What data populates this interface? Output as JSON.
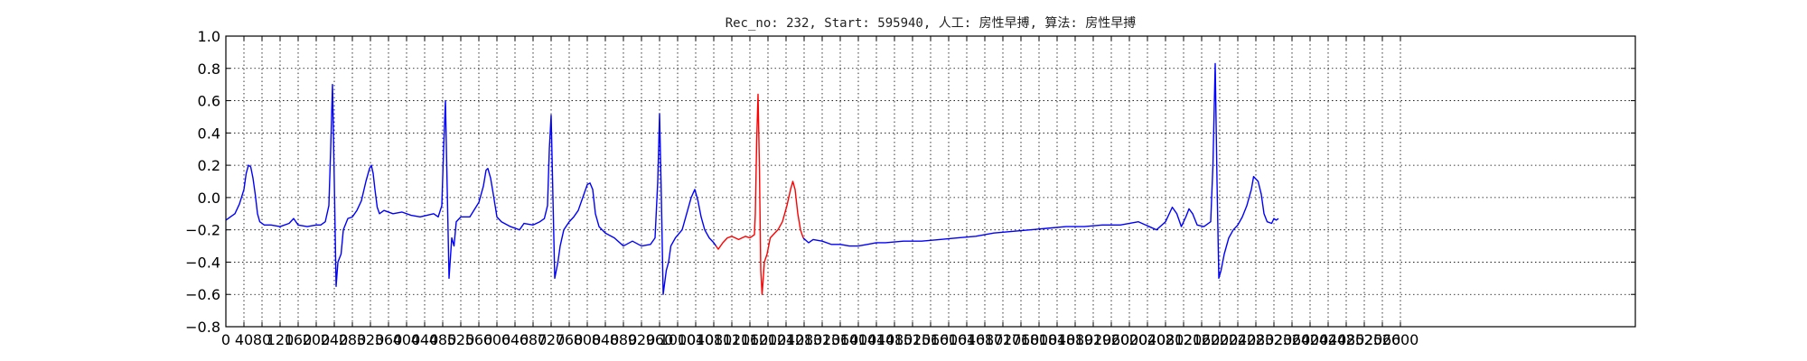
{
  "chart_data": {
    "type": "line",
    "title": "Rec_no: 232, Start: 595940, 人工: 房性早搏, 算法: 房性早搏",
    "xlabel": "",
    "ylabel": "",
    "xlim": [
      0,
      3120
    ],
    "ylim": [
      -0.8,
      1.0
    ],
    "grid": true,
    "x_ticks": [
      "0",
      "40",
      "80",
      "120",
      "160",
      "200",
      "240",
      "280",
      "320",
      "360",
      "400",
      "440",
      "480",
      "520",
      "560",
      "600",
      "640",
      "680",
      "720",
      "760",
      "800",
      "840",
      "880",
      "920",
      "960",
      "1000",
      "1040",
      "1080",
      "1120",
      "1160",
      "1200",
      "1240",
      "1280",
      "1320",
      "1360",
      "1400",
      "1440",
      "1480",
      "1520",
      "1560",
      "1600",
      "1640",
      "1680",
      "1720",
      "1760",
      "1800",
      "1840",
      "1880",
      "1920",
      "1960",
      "2000",
      "2040",
      "2080",
      "2120",
      "2160",
      "2200",
      "2240",
      "2280",
      "2320",
      "2360",
      "2400",
      "2440",
      "2480",
      "2520",
      "2560",
      "2600"
    ],
    "y_ticks": [
      "1.0",
      "0.8",
      "0.6",
      "0.4",
      "0.2",
      "0.0",
      "−0.2",
      "−0.4",
      "−0.6",
      "−0.8"
    ],
    "series": [
      {
        "color": "#0000ff",
        "points": [
          [
            0,
            -0.14
          ],
          [
            10,
            -0.12
          ],
          [
            20,
            -0.1
          ],
          [
            30,
            -0.04
          ],
          [
            40,
            0.05
          ],
          [
            45,
            0.15
          ],
          [
            50,
            0.2
          ],
          [
            55,
            0.19
          ],
          [
            60,
            0.12
          ],
          [
            65,
            0.02
          ],
          [
            70,
            -0.1
          ],
          [
            75,
            -0.15
          ],
          [
            85,
            -0.17
          ],
          [
            100,
            -0.17
          ],
          [
            120,
            -0.18
          ],
          [
            140,
            -0.16
          ],
          [
            150,
            -0.13
          ],
          [
            160,
            -0.17
          ],
          [
            180,
            -0.18
          ],
          [
            200,
            -0.17
          ],
          [
            210,
            -0.17
          ],
          [
            220,
            -0.15
          ],
          [
            228,
            -0.05
          ],
          [
            232,
            0.3
          ],
          [
            236,
            0.7
          ],
          [
            240,
            0.1
          ],
          [
            244,
            -0.55
          ],
          [
            248,
            -0.4
          ],
          [
            255,
            -0.35
          ],
          [
            260,
            -0.2
          ],
          [
            270,
            -0.13
          ],
          [
            280,
            -0.12
          ],
          [
            290,
            -0.08
          ],
          [
            300,
            -0.02
          ],
          [
            310,
            0.1
          ],
          [
            318,
            0.18
          ],
          [
            322,
            0.2
          ],
          [
            326,
            0.15
          ],
          [
            330,
            0.05
          ],
          [
            335,
            -0.06
          ],
          [
            340,
            -0.1
          ],
          [
            350,
            -0.08
          ],
          [
            370,
            -0.1
          ],
          [
            390,
            -0.09
          ],
          [
            410,
            -0.11
          ],
          [
            430,
            -0.12
          ],
          [
            460,
            -0.1
          ],
          [
            470,
            -0.12
          ],
          [
            478,
            -0.05
          ],
          [
            482,
            0.3
          ],
          [
            486,
            0.6
          ],
          [
            490,
            0.05
          ],
          [
            494,
            -0.5
          ],
          [
            500,
            -0.25
          ],
          [
            505,
            -0.3
          ],
          [
            510,
            -0.15
          ],
          [
            520,
            -0.12
          ],
          [
            540,
            -0.12
          ],
          [
            560,
            -0.03
          ],
          [
            570,
            0.07
          ],
          [
            576,
            0.17
          ],
          [
            580,
            0.18
          ],
          [
            586,
            0.12
          ],
          [
            592,
            0.02
          ],
          [
            600,
            -0.12
          ],
          [
            610,
            -0.15
          ],
          [
            630,
            -0.18
          ],
          [
            650,
            -0.2
          ],
          [
            660,
            -0.16
          ],
          [
            680,
            -0.17
          ],
          [
            695,
            -0.15
          ],
          [
            705,
            -0.13
          ],
          [
            712,
            -0.05
          ],
          [
            716,
            0.3
          ],
          [
            720,
            0.51
          ],
          [
            724,
            0.0
          ],
          [
            728,
            -0.5
          ],
          [
            735,
            -0.4
          ],
          [
            740,
            -0.3
          ],
          [
            748,
            -0.2
          ],
          [
            760,
            -0.15
          ],
          [
            770,
            -0.12
          ],
          [
            780,
            -0.08
          ],
          [
            790,
            0.0
          ],
          [
            800,
            0.08
          ],
          [
            806,
            0.09
          ],
          [
            812,
            0.05
          ],
          [
            818,
            -0.1
          ],
          [
            826,
            -0.18
          ],
          [
            840,
            -0.22
          ],
          [
            860,
            -0.25
          ],
          [
            880,
            -0.3
          ],
          [
            900,
            -0.27
          ],
          [
            920,
            -0.3
          ],
          [
            940,
            -0.29
          ],
          [
            950,
            -0.25
          ],
          [
            956,
            0.1
          ],
          [
            960,
            0.52
          ],
          [
            964,
            0.0
          ],
          [
            968,
            -0.6
          ],
          [
            975,
            -0.45
          ],
          [
            980,
            -0.4
          ],
          [
            985,
            -0.3
          ],
          [
            995,
            -0.25
          ],
          [
            1010,
            -0.2
          ],
          [
            1020,
            -0.1
          ],
          [
            1030,
            0.0
          ],
          [
            1038,
            0.05
          ],
          [
            1045,
            -0.02
          ],
          [
            1052,
            -0.12
          ],
          [
            1060,
            -0.2
          ],
          [
            1070,
            -0.25
          ],
          [
            1080,
            -0.28
          ],
          [
            1085,
            -0.3
          ]
        ]
      },
      {
        "color": "#ff0000",
        "points": [
          [
            1085,
            -0.3
          ],
          [
            1090,
            -0.32
          ],
          [
            1100,
            -0.28
          ],
          [
            1110,
            -0.25
          ],
          [
            1120,
            -0.24
          ],
          [
            1135,
            -0.26
          ],
          [
            1150,
            -0.24
          ],
          [
            1160,
            -0.25
          ],
          [
            1170,
            -0.23
          ],
          [
            1172,
            -0.1
          ],
          [
            1175,
            0.35
          ],
          [
            1178,
            0.64
          ],
          [
            1181,
            0.2
          ],
          [
            1184,
            -0.45
          ],
          [
            1187,
            -0.6
          ],
          [
            1192,
            -0.4
          ],
          [
            1198,
            -0.35
          ],
          [
            1205,
            -0.25
          ],
          [
            1215,
            -0.22
          ],
          [
            1222,
            -0.2
          ],
          [
            1232,
            -0.15
          ],
          [
            1242,
            -0.05
          ],
          [
            1250,
            0.05
          ],
          [
            1255,
            0.1
          ],
          [
            1260,
            0.05
          ],
          [
            1266,
            -0.1
          ],
          [
            1272,
            -0.2
          ],
          [
            1278,
            -0.25
          ]
        ]
      },
      {
        "color": "#0000ff",
        "points": [
          [
            1278,
            -0.25
          ],
          [
            1290,
            -0.28
          ],
          [
            1300,
            -0.26
          ],
          [
            1320,
            -0.27
          ],
          [
            1340,
            -0.29
          ],
          [
            1360,
            -0.29
          ],
          [
            1380,
            -0.3
          ],
          [
            1400,
            -0.3
          ],
          [
            1420,
            -0.29
          ],
          [
            1440,
            -0.28
          ],
          [
            1460,
            -0.28
          ],
          [
            1500,
            -0.27
          ],
          [
            1540,
            -0.27
          ],
          [
            1580,
            -0.26
          ],
          [
            1620,
            -0.25
          ],
          [
            1660,
            -0.24
          ],
          [
            1700,
            -0.22
          ],
          [
            1740,
            -0.21
          ],
          [
            1780,
            -0.2
          ],
          [
            1820,
            -0.19
          ],
          [
            1860,
            -0.18
          ],
          [
            1900,
            -0.18
          ],
          [
            1940,
            -0.17
          ],
          [
            1980,
            -0.17
          ],
          [
            2020,
            -0.15
          ],
          [
            2060,
            -0.2
          ],
          [
            2080,
            -0.15
          ],
          [
            2095,
            -0.06
          ],
          [
            2105,
            -0.1
          ],
          [
            2115,
            -0.18
          ],
          [
            2125,
            -0.12
          ],
          [
            2132,
            -0.07
          ],
          [
            2140,
            -0.1
          ],
          [
            2150,
            -0.17
          ],
          [
            2165,
            -0.18
          ],
          [
            2180,
            -0.15
          ],
          [
            2185,
            0.2
          ],
          [
            2190,
            0.83
          ],
          [
            2194,
            0.1
          ],
          [
            2198,
            -0.5
          ],
          [
            2203,
            -0.45
          ],
          [
            2210,
            -0.35
          ],
          [
            2220,
            -0.25
          ],
          [
            2230,
            -0.2
          ],
          [
            2240,
            -0.17
          ],
          [
            2250,
            -0.12
          ],
          [
            2260,
            -0.05
          ],
          [
            2270,
            0.05
          ],
          [
            2275,
            0.13
          ],
          [
            2285,
            0.1
          ],
          [
            2292,
            0.02
          ],
          [
            2298,
            -0.1
          ],
          [
            2305,
            -0.15
          ],
          [
            2315,
            -0.16
          ],
          [
            2320,
            -0.13
          ],
          [
            2325,
            -0.14
          ],
          [
            2330,
            -0.13
          ]
        ]
      }
    ]
  }
}
